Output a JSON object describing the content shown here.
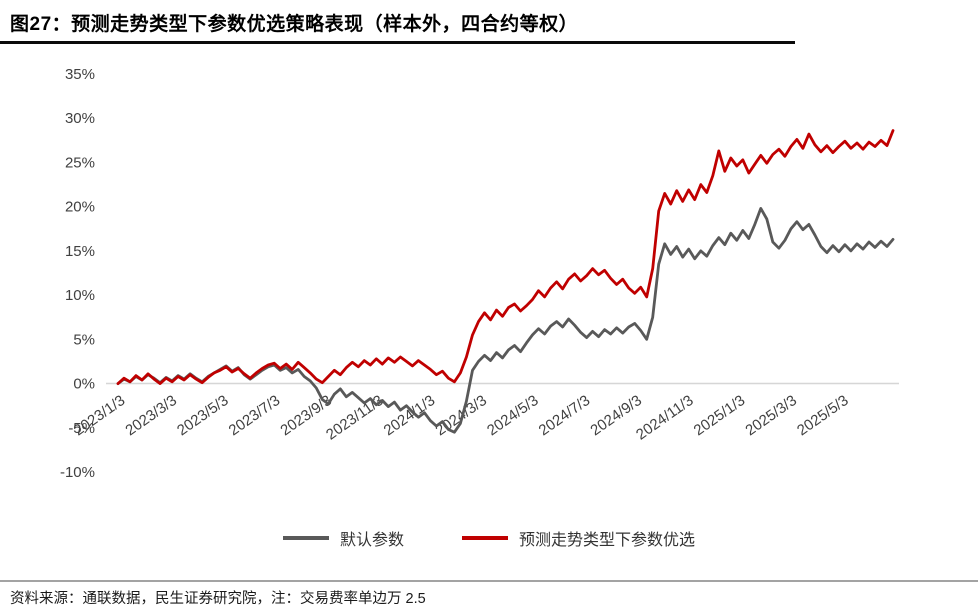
{
  "title": "图27：预测走势类型下参数优选策略表现（样本外，四合约等权）",
  "footer": {
    "source": "资料来源：通联数据，民生证券研究院，注：交易费率单边万 2.5"
  },
  "colors": {
    "title": "#000000",
    "zero_line": "#d6d6d6",
    "axis_label": "#404040",
    "default_series": "#595959",
    "optimized_series": "#c00000"
  },
  "chart_data": {
    "type": "line",
    "title": "预测走势类型下参数优选策略表现（样本外，四合约等权）",
    "xlabel": "",
    "ylabel": "",
    "ylim": [
      -10,
      35
    ],
    "grid": false,
    "legend_position": "bottom",
    "yticks": [
      {
        "v": 35,
        "label": "35%"
      },
      {
        "v": 30,
        "label": "30%"
      },
      {
        "v": 25,
        "label": "25%"
      },
      {
        "v": 20,
        "label": "20%"
      },
      {
        "v": 15,
        "label": "15%"
      },
      {
        "v": 10,
        "label": "10%"
      },
      {
        "v": 5,
        "label": "5%"
      },
      {
        "v": 0,
        "label": "0%"
      },
      {
        "v": -5,
        "label": "-5%"
      },
      {
        "v": -10,
        "label": "-10%"
      }
    ],
    "x_ticks": [
      {
        "t": 0.0,
        "label": "2023/1/3"
      },
      {
        "t": 0.0667,
        "label": "2023/3/3"
      },
      {
        "t": 0.1333,
        "label": "2023/5/3"
      },
      {
        "t": 0.2,
        "label": "2023/7/3"
      },
      {
        "t": 0.2667,
        "label": "2023/9/3"
      },
      {
        "t": 0.3333,
        "label": "2023/11/3"
      },
      {
        "t": 0.4,
        "label": "2024/1/3"
      },
      {
        "t": 0.4667,
        "label": "2024/3/3"
      },
      {
        "t": 0.5333,
        "label": "2024/5/3"
      },
      {
        "t": 0.6,
        "label": "2024/7/3"
      },
      {
        "t": 0.6667,
        "label": "2024/9/3"
      },
      {
        "t": 0.7333,
        "label": "2024/11/3"
      },
      {
        "t": 0.8,
        "label": "2025/1/3"
      },
      {
        "t": 0.8667,
        "label": "2025/3/3"
      },
      {
        "t": 0.9333,
        "label": "2025/5/3"
      }
    ],
    "series": [
      {
        "name": "默认参数",
        "color": "#595959",
        "unit": "%",
        "values": [
          0.0,
          0.5,
          0.2,
          0.8,
          0.4,
          1.0,
          0.6,
          0.1,
          0.7,
          0.3,
          0.9,
          0.5,
          1.1,
          0.6,
          0.2,
          0.8,
          1.2,
          1.6,
          2.0,
          1.4,
          1.8,
          1.0,
          0.5,
          1.0,
          1.5,
          1.9,
          2.1,
          1.5,
          1.8,
          1.2,
          1.6,
          0.8,
          0.3,
          -0.5,
          -1.8,
          -2.3,
          -1.2,
          -0.6,
          -1.5,
          -1.0,
          -1.6,
          -2.2,
          -1.7,
          -2.4,
          -1.9,
          -2.6,
          -2.1,
          -3.0,
          -2.5,
          -3.2,
          -3.8,
          -3.3,
          -4.2,
          -4.8,
          -4.3,
          -5.2,
          -5.5,
          -4.5,
          -2.0,
          1.5,
          2.5,
          3.2,
          2.6,
          3.5,
          2.9,
          3.8,
          4.3,
          3.6,
          4.6,
          5.5,
          6.2,
          5.6,
          6.5,
          7.0,
          6.4,
          7.3,
          6.6,
          5.8,
          5.2,
          5.9,
          5.3,
          6.1,
          5.6,
          6.3,
          5.7,
          6.4,
          6.8,
          6.0,
          5.0,
          7.5,
          13.5,
          15.8,
          14.6,
          15.5,
          14.3,
          15.2,
          14.1,
          15.0,
          14.4,
          15.6,
          16.5,
          15.7,
          17.0,
          16.2,
          17.3,
          16.4,
          18.0,
          19.8,
          18.6,
          16.0,
          15.3,
          16.2,
          17.5,
          18.3,
          17.4,
          18.0,
          16.8,
          15.5,
          14.8,
          15.6,
          14.9,
          15.7,
          15.0,
          15.8,
          15.2,
          16.0,
          15.4,
          16.1,
          15.5,
          16.3
        ]
      },
      {
        "name": "预测走势类型下参数优选",
        "color": "#c00000",
        "unit": "%",
        "values": [
          0.0,
          0.6,
          0.2,
          0.9,
          0.4,
          1.1,
          0.5,
          0.0,
          0.6,
          0.2,
          0.8,
          0.4,
          1.0,
          0.5,
          0.1,
          0.7,
          1.2,
          1.5,
          1.9,
          1.3,
          1.7,
          1.1,
          0.6,
          1.2,
          1.7,
          2.1,
          2.3,
          1.7,
          2.2,
          1.6,
          2.4,
          1.8,
          1.2,
          0.5,
          0.1,
          0.8,
          1.5,
          1.0,
          1.8,
          2.4,
          1.9,
          2.6,
          2.1,
          2.8,
          2.2,
          2.9,
          2.4,
          3.0,
          2.5,
          2.0,
          2.6,
          2.1,
          1.6,
          1.0,
          1.4,
          0.6,
          0.2,
          1.2,
          3.0,
          5.5,
          7.0,
          8.0,
          7.2,
          8.3,
          7.6,
          8.6,
          9.0,
          8.2,
          8.8,
          9.5,
          10.5,
          9.8,
          10.8,
          11.5,
          10.7,
          11.8,
          12.4,
          11.6,
          12.2,
          13.0,
          12.3,
          12.8,
          11.9,
          11.2,
          11.8,
          10.8,
          10.2,
          10.9,
          9.8,
          13.0,
          19.5,
          21.5,
          20.3,
          21.8,
          20.6,
          21.9,
          20.8,
          22.5,
          21.6,
          23.5,
          26.3,
          24.0,
          25.5,
          24.6,
          25.3,
          23.8,
          24.8,
          25.8,
          24.9,
          25.9,
          26.5,
          25.7,
          26.8,
          27.6,
          26.6,
          28.2,
          27.0,
          26.2,
          26.9,
          26.1,
          26.8,
          27.4,
          26.6,
          27.2,
          26.5,
          27.3,
          26.8,
          27.5,
          26.9,
          28.6
        ]
      }
    ]
  }
}
